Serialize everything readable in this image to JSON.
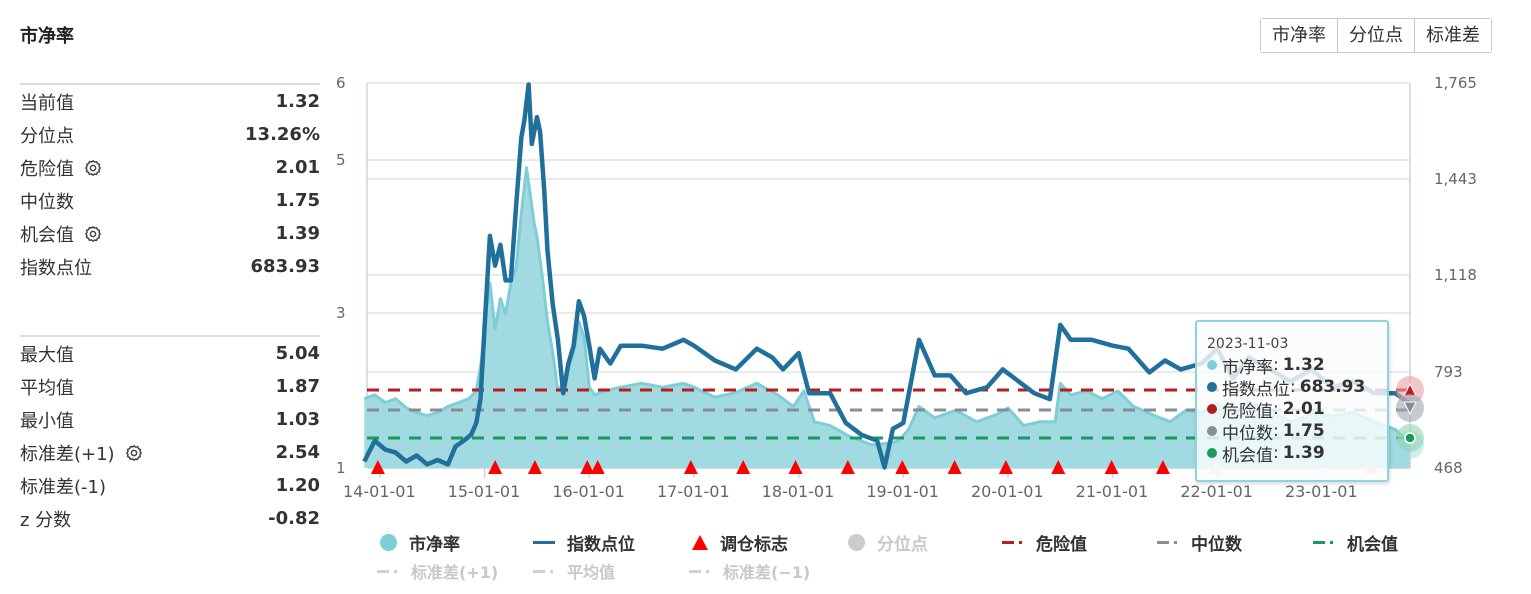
{
  "title": "市净率",
  "buttons": [
    "市净率",
    "分位点",
    "标准差"
  ],
  "stats_top": [
    {
      "label": "当前值",
      "value": "1.32",
      "gear": false
    },
    {
      "label": "分位点",
      "value": "13.26%",
      "gear": false
    },
    {
      "label": "危险值",
      "value": "2.01",
      "gear": true
    },
    {
      "label": "中位数",
      "value": "1.75",
      "gear": false
    },
    {
      "label": "机会值",
      "value": "1.39",
      "gear": true
    },
    {
      "label": "指数点位",
      "value": "683.93",
      "gear": false
    }
  ],
  "stats_bottom": [
    {
      "label": "最大值",
      "value": "5.04",
      "gear": false
    },
    {
      "label": "平均值",
      "value": "1.87",
      "gear": false
    },
    {
      "label": "最小值",
      "value": "1.03",
      "gear": false
    },
    {
      "label": "标准差(+1)",
      "value": "2.54",
      "gear": true
    },
    {
      "label": "标准差(-1)",
      "value": "1.20",
      "gear": false
    },
    {
      "label": "z 分数",
      "value": "-0.82",
      "gear": false
    }
  ],
  "tooltip": {
    "date": "2023-11-03",
    "rows": [
      {
        "label": "市净率",
        "value": "1.32",
        "color": "#7fcdd6"
      },
      {
        "label": "指数点位",
        "value": "683.93",
        "color": "#21709c"
      },
      {
        "label": "危险值",
        "value": "2.01",
        "color": "#b81c1c"
      },
      {
        "label": "中位数",
        "value": "1.75",
        "color": "#888c94"
      },
      {
        "label": "机会值",
        "value": "1.39",
        "color": "#1a9b5a"
      }
    ]
  },
  "legend": {
    "row1": [
      {
        "label": "市净率",
        "type": "circle",
        "color": "#7fcdd6",
        "active": true
      },
      {
        "label": "指数点位",
        "type": "line",
        "color": "#21709c",
        "active": true
      },
      {
        "label": "调仓标志",
        "type": "triangle",
        "color": "#ff0000",
        "active": true
      },
      {
        "label": "分位点",
        "type": "circle",
        "color": "#cccccc",
        "active": false
      },
      {
        "label": "危险值",
        "type": "dash",
        "color": "#b81c1c",
        "active": true
      },
      {
        "label": "中位数",
        "type": "dash",
        "color": "#888c94",
        "active": true
      },
      {
        "label": "机会值",
        "type": "dash",
        "color": "#1a9b5a",
        "active": true
      }
    ],
    "row2": [
      {
        "label": "标准差(+1)",
        "type": "dash",
        "color": "#d0d0d0",
        "active": false
      },
      {
        "label": "平均值",
        "type": "dash",
        "color": "#d0d0d0",
        "active": false
      },
      {
        "label": "标准差(−1)",
        "type": "dash",
        "color": "#d0d0d0",
        "active": false
      }
    ]
  },
  "chart_data": {
    "type": "line",
    "title": "市净率",
    "x_tick_labels": [
      "14-01-01",
      "15-01-01",
      "16-01-01",
      "17-01-01",
      "18-01-01",
      "19-01-01",
      "20-01-01",
      "21-01-01",
      "22-01-01",
      "23-01-01"
    ],
    "left_axis": {
      "label": "市净率",
      "ticks": [
        1,
        3,
        5,
        6
      ],
      "range": [
        1,
        6
      ]
    },
    "right_axis": {
      "label": "指数点位",
      "ticks": [
        "468",
        "793",
        "1,118",
        "1,443",
        "1,765"
      ],
      "range": [
        468,
        1765
      ]
    },
    "reference_lines": {
      "危险值": 2.01,
      "中位数": 1.75,
      "机会值": 1.39
    },
    "series": [
      {
        "name": "市净率",
        "axis": "left",
        "type": "area",
        "points": [
          [
            2013.85,
            1.9
          ],
          [
            2013.95,
            1.95
          ],
          [
            2014.05,
            1.85
          ],
          [
            2014.15,
            1.9
          ],
          [
            2014.25,
            1.78
          ],
          [
            2014.35,
            1.72
          ],
          [
            2014.45,
            1.68
          ],
          [
            2014.55,
            1.72
          ],
          [
            2014.65,
            1.8
          ],
          [
            2014.75,
            1.85
          ],
          [
            2014.85,
            1.9
          ],
          [
            2014.92,
            2.0
          ],
          [
            2014.97,
            2.4
          ],
          [
            2015.0,
            2.9
          ],
          [
            2015.05,
            3.4
          ],
          [
            2015.1,
            2.8
          ],
          [
            2015.15,
            3.2
          ],
          [
            2015.2,
            3.0
          ],
          [
            2015.25,
            3.4
          ],
          [
            2015.3,
            3.6
          ],
          [
            2015.35,
            4.3
          ],
          [
            2015.4,
            4.9
          ],
          [
            2015.43,
            4.6
          ],
          [
            2015.47,
            4.2
          ],
          [
            2015.5,
            4.0
          ],
          [
            2015.55,
            3.5
          ],
          [
            2015.6,
            2.9
          ],
          [
            2015.65,
            2.5
          ],
          [
            2015.7,
            2.0
          ],
          [
            2015.75,
            2.1
          ],
          [
            2015.8,
            2.3
          ],
          [
            2015.85,
            2.5
          ],
          [
            2015.9,
            2.9
          ],
          [
            2015.95,
            2.7
          ],
          [
            2016.0,
            2.05
          ],
          [
            2016.05,
            1.95
          ],
          [
            2016.15,
            2.0
          ],
          [
            2016.3,
            2.05
          ],
          [
            2016.5,
            2.1
          ],
          [
            2016.7,
            2.05
          ],
          [
            2016.9,
            2.1
          ],
          [
            2017.0,
            2.05
          ],
          [
            2017.2,
            1.92
          ],
          [
            2017.4,
            1.98
          ],
          [
            2017.6,
            2.1
          ],
          [
            2017.8,
            1.95
          ],
          [
            2017.95,
            1.8
          ],
          [
            2018.05,
            2.0
          ],
          [
            2018.15,
            1.6
          ],
          [
            2018.3,
            1.55
          ],
          [
            2018.5,
            1.4
          ],
          [
            2018.7,
            1.3
          ],
          [
            2018.85,
            1.32
          ],
          [
            2018.95,
            1.35
          ],
          [
            2019.05,
            1.5
          ],
          [
            2019.15,
            1.8
          ],
          [
            2019.3,
            1.65
          ],
          [
            2019.5,
            1.75
          ],
          [
            2019.7,
            1.6
          ],
          [
            2019.9,
            1.7
          ],
          [
            2020.0,
            1.78
          ],
          [
            2020.15,
            1.55
          ],
          [
            2020.3,
            1.6
          ],
          [
            2020.45,
            1.6
          ],
          [
            2020.5,
            2.1
          ],
          [
            2020.6,
            1.95
          ],
          [
            2020.75,
            2.0
          ],
          [
            2020.9,
            1.9
          ],
          [
            2021.05,
            2.0
          ],
          [
            2021.2,
            1.8
          ],
          [
            2021.4,
            1.68
          ],
          [
            2021.55,
            1.6
          ],
          [
            2021.7,
            1.75
          ],
          [
            2021.85,
            1.72
          ],
          [
            2022.0,
            1.85
          ],
          [
            2022.15,
            1.7
          ],
          [
            2022.3,
            1.85
          ],
          [
            2022.5,
            1.75
          ],
          [
            2022.7,
            1.6
          ],
          [
            2022.9,
            1.7
          ],
          [
            2023.1,
            1.68
          ],
          [
            2023.3,
            1.72
          ],
          [
            2023.5,
            1.6
          ],
          [
            2023.7,
            1.5
          ],
          [
            2023.84,
            1.32
          ]
        ]
      },
      {
        "name": "指数点位",
        "axis": "right",
        "type": "line",
        "points": [
          [
            2013.85,
            490
          ],
          [
            2013.95,
            560
          ],
          [
            2014.05,
            530
          ],
          [
            2014.15,
            520
          ],
          [
            2014.25,
            490
          ],
          [
            2014.35,
            510
          ],
          [
            2014.45,
            480
          ],
          [
            2014.55,
            495
          ],
          [
            2014.65,
            480
          ],
          [
            2014.72,
            540
          ],
          [
            2014.8,
            560
          ],
          [
            2014.87,
            580
          ],
          [
            2014.92,
            620
          ],
          [
            2014.96,
            700
          ],
          [
            2015.0,
            950
          ],
          [
            2015.05,
            1250
          ],
          [
            2015.1,
            1150
          ],
          [
            2015.15,
            1220
          ],
          [
            2015.2,
            1100
          ],
          [
            2015.25,
            1100
          ],
          [
            2015.3,
            1350
          ],
          [
            2015.35,
            1580
          ],
          [
            2015.38,
            1640
          ],
          [
            2015.42,
            1760
          ],
          [
            2015.45,
            1560
          ],
          [
            2015.5,
            1650
          ],
          [
            2015.53,
            1600
          ],
          [
            2015.57,
            1400
          ],
          [
            2015.6,
            1200
          ],
          [
            2015.65,
            1020
          ],
          [
            2015.7,
            900
          ],
          [
            2015.75,
            720
          ],
          [
            2015.8,
            820
          ],
          [
            2015.85,
            880
          ],
          [
            2015.9,
            1030
          ],
          [
            2015.95,
            980
          ],
          [
            2016.0,
            880
          ],
          [
            2016.05,
            770
          ],
          [
            2016.1,
            870
          ],
          [
            2016.2,
            820
          ],
          [
            2016.3,
            880
          ],
          [
            2016.5,
            880
          ],
          [
            2016.7,
            870
          ],
          [
            2016.9,
            900
          ],
          [
            2017.0,
            880
          ],
          [
            2017.2,
            830
          ],
          [
            2017.4,
            800
          ],
          [
            2017.6,
            870
          ],
          [
            2017.75,
            840
          ],
          [
            2017.85,
            800
          ],
          [
            2018.0,
            855
          ],
          [
            2018.1,
            720
          ],
          [
            2018.3,
            720
          ],
          [
            2018.45,
            620
          ],
          [
            2018.6,
            580
          ],
          [
            2018.75,
            560
          ],
          [
            2018.82,
            470
          ],
          [
            2018.9,
            600
          ],
          [
            2019.0,
            620
          ],
          [
            2019.15,
            900
          ],
          [
            2019.3,
            780
          ],
          [
            2019.45,
            780
          ],
          [
            2019.6,
            720
          ],
          [
            2019.8,
            740
          ],
          [
            2019.95,
            800
          ],
          [
            2020.1,
            760
          ],
          [
            2020.25,
            720
          ],
          [
            2020.4,
            700
          ],
          [
            2020.5,
            950
          ],
          [
            2020.6,
            900
          ],
          [
            2020.8,
            900
          ],
          [
            2021.0,
            880
          ],
          [
            2021.15,
            870
          ],
          [
            2021.35,
            790
          ],
          [
            2021.5,
            830
          ],
          [
            2021.65,
            800
          ],
          [
            2021.85,
            820
          ],
          [
            2022.0,
            870
          ],
          [
            2022.15,
            770
          ],
          [
            2022.3,
            840
          ],
          [
            2022.5,
            800
          ],
          [
            2022.7,
            760
          ],
          [
            2022.9,
            800
          ],
          [
            2023.1,
            740
          ],
          [
            2023.3,
            760
          ],
          [
            2023.5,
            720
          ],
          [
            2023.7,
            720
          ],
          [
            2023.84,
            684
          ]
        ]
      }
    ],
    "rebalance_markers": [
      2013.98,
      2015.1,
      2015.48,
      2015.98,
      2016.08,
      2016.97,
      2017.47,
      2017.97,
      2018.47,
      2018.99,
      2019.49,
      2019.98,
      2020.48,
      2020.99,
      2021.48,
      2021.98,
      2023.47
    ]
  }
}
